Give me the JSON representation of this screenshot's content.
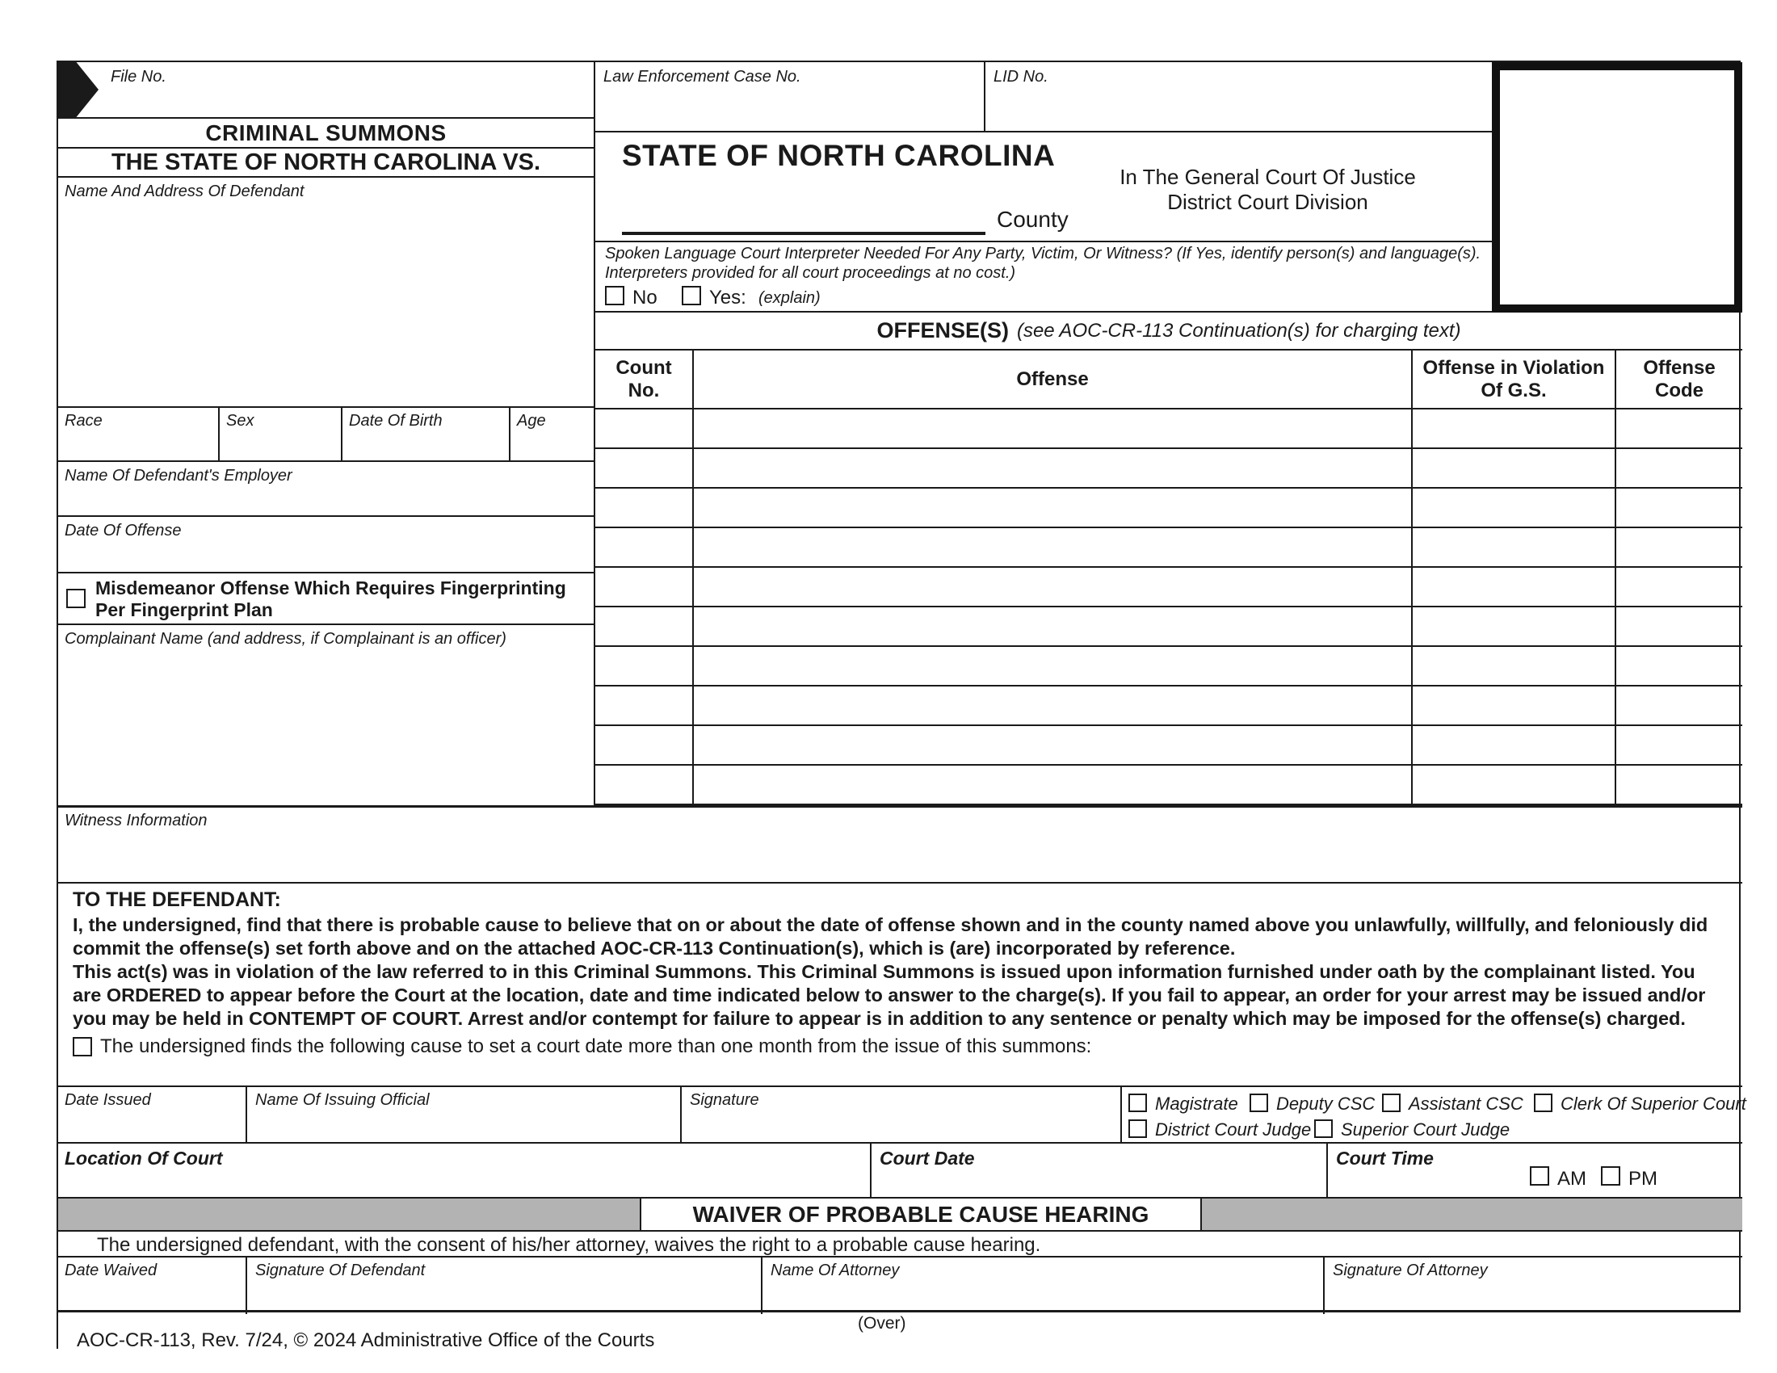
{
  "colors": {
    "border": "#1a1a1a",
    "gray_bar": "#b3b3b3",
    "arrow": "#1a1a1a"
  },
  "top_left": {
    "file_no_label": "File No.",
    "title": "CRIMINAL SUMMONS",
    "subtitle": "THE STATE OF NORTH CAROLINA VS.",
    "defendant_label": "Name And Address Of Defendant",
    "race_label": "Race",
    "sex_label": "Sex",
    "dob_label": "Date Of Birth",
    "age_label": "Age",
    "employer_label": "Name Of Defendant's Employer",
    "date_of_offense_label": "Date Of Offense",
    "fingerprint_label": "Misdemeanor Offense Which Requires Fingerprinting Per Fingerprint Plan",
    "complainant_label": "Complainant Name (and address, if Complainant is an officer)",
    "witness_label": "Witness Information"
  },
  "header": {
    "law_case_label": "Law Enforcement Case No.",
    "lid_label": "LID No.",
    "state_title": "STATE OF NORTH CAROLINA",
    "county_label": "County",
    "court_line1": "In The General Court Of Justice",
    "court_line2": "District Court Division"
  },
  "interpreter": {
    "line1": "Spoken Language Court Interpreter Needed For Any Party, Victim, Or Witness? (If Yes, identify person(s) and language(s).",
    "line2": "Interpreters provided for all court proceedings at no cost.)",
    "no_label": "No",
    "yes_label": "Yes:",
    "explain_label": "(explain)"
  },
  "offenses": {
    "title": "OFFENSE(S)",
    "title_note": "(see AOC-CR-113 Continuation(s) for charging text)",
    "col_count": "Count\nNo.",
    "col_offense": "Offense",
    "col_gs": "Offense in Violation\nOf G.S.",
    "col_code": "Offense\nCode",
    "row_count": 10
  },
  "to_defendant": {
    "heading": "TO THE DEFENDANT:",
    "para1": "I, the undersigned, find that there is probable cause to believe that on or about the date of offense shown and in the county named above you unlawfully, willfully, and feloniously did commit the offense(s) set forth above and on the attached AOC-CR-113 Continuation(s), which is (are) incorporated by reference.",
    "para2": "This act(s) was in violation of the law referred to in this Criminal Summons. This Criminal Summons is issued upon information furnished under oath by the complainant listed. You are ORDERED to appear before the Court at the location, date and time indicated below to answer to the charge(s). If you fail to appear, an order for your arrest may be issued and/or you may be held in CONTEMPT OF COURT. Arrest and/or contempt for failure to appear is in addition to any sentence or penalty which may be imposed for the offense(s) charged.",
    "cause_checkbox_label": "The undersigned finds the following cause to set a court date more than one month from the issue of this summons:"
  },
  "issuance": {
    "date_issued_label": "Date Issued",
    "official_label": "Name Of Issuing Official",
    "signature_label": "Signature",
    "officials_row1": [
      "Magistrate",
      "Deputy CSC",
      "Assistant CSC",
      "Clerk Of Superior Court"
    ],
    "officials_row2": [
      "District Court Judge",
      "Superior Court Judge"
    ],
    "location_label": "Location Of Court",
    "court_date_label": "Court Date",
    "court_time_label": "Court Time",
    "am_label": "AM",
    "pm_label": "PM"
  },
  "waiver": {
    "title": "WAIVER OF PROBABLE CAUSE HEARING",
    "text": "The undersigned defendant, with the consent of his/her attorney, waives the right to a probable cause hearing.",
    "date_waived_label": "Date Waived",
    "sig_defendant_label": "Signature Of Defendant",
    "attorney_label": "Name Of Attorney",
    "sig_attorney_label": "Signature Of Attorney"
  },
  "footer": {
    "over": "(Over)",
    "form_id": "AOC-CR-113, Rev. 7/24, © 2024 Administrative Office of the Courts"
  }
}
